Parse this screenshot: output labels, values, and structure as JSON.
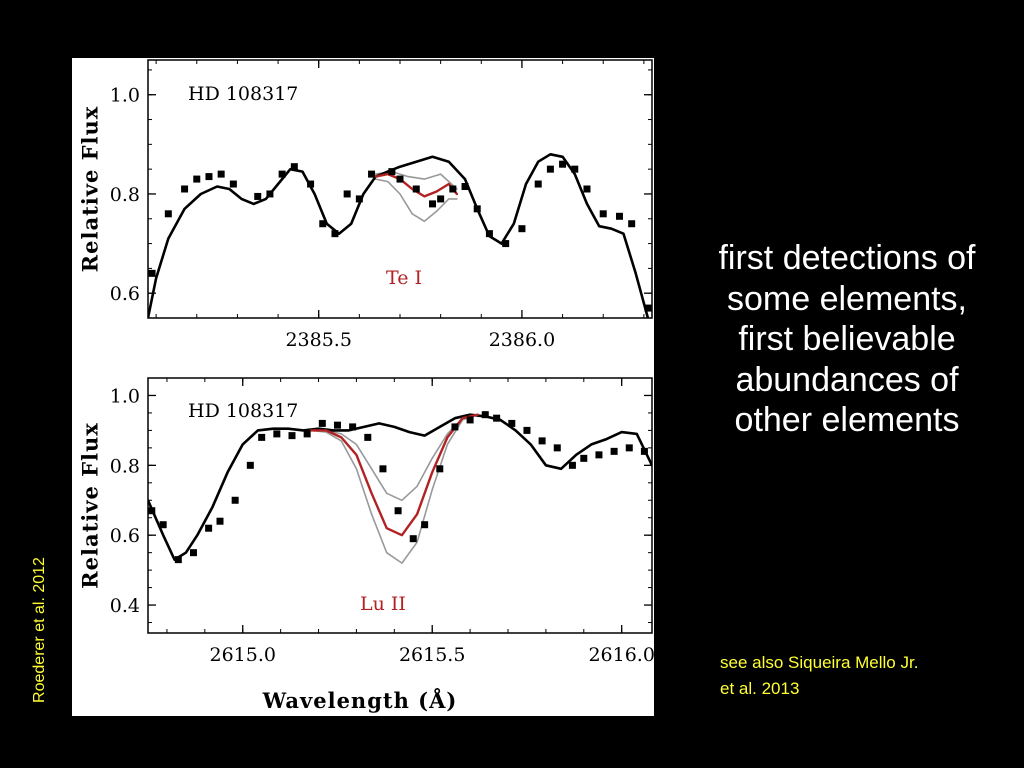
{
  "slide": {
    "main_text_lines": [
      "first detections of",
      "some elements,",
      "first believable",
      "abundances of",
      "other elements"
    ],
    "see_also_lines": [
      "see also Siqueira Mello Jr.",
      "et al. 2013"
    ],
    "citation": "Roederer et al. 2012",
    "colors": {
      "background": "#000000",
      "main_text": "#ffffff",
      "accent_text": "#ffff33"
    }
  },
  "chart_data": [
    {
      "type": "line",
      "title": "HD 108317",
      "annotation": "Te I",
      "ylabel": "Relative Flux",
      "xlabel": "",
      "xlim": [
        2385.08,
        2386.32
      ],
      "ylim": [
        0.55,
        1.07
      ],
      "xticks": [
        2385.5,
        2386.0
      ],
      "xtick_labels": [
        "2385.5",
        "2386.0"
      ],
      "yticks": [
        0.6,
        0.8,
        1.0
      ],
      "ytick_labels": [
        "0.6",
        "0.8",
        "1.0"
      ],
      "colors": {
        "observed": "#000000",
        "best_fit": "#b22222",
        "comparison": "#999999",
        "no_element": "#000000",
        "annotation": "#b22222"
      },
      "observed": {
        "x": [
          2385.09,
          2385.13,
          2385.17,
          2385.2,
          2385.23,
          2385.26,
          2385.29,
          2385.35,
          2385.38,
          2385.41,
          2385.44,
          2385.48,
          2385.51,
          2385.54,
          2385.57,
          2385.6,
          2385.63,
          2385.68,
          2385.7,
          2385.74,
          2385.78,
          2385.8,
          2385.83,
          2385.86,
          2385.89,
          2385.92,
          2385.96,
          2386.0,
          2386.04,
          2386.07,
          2386.1,
          2386.13,
          2386.16,
          2386.2,
          2386.24,
          2386.27,
          2386.31
        ],
        "y": [
          0.64,
          0.76,
          0.81,
          0.83,
          0.835,
          0.84,
          0.82,
          0.795,
          0.8,
          0.84,
          0.855,
          0.82,
          0.74,
          0.72,
          0.8,
          0.79,
          0.84,
          0.845,
          0.83,
          0.81,
          0.78,
          0.79,
          0.81,
          0.815,
          0.77,
          0.72,
          0.7,
          0.73,
          0.82,
          0.85,
          0.86,
          0.85,
          0.81,
          0.76,
          0.755,
          0.74,
          0.57
        ]
      },
      "model_no_element": {
        "x": [
          2385.08,
          2385.1,
          2385.13,
          2385.17,
          2385.21,
          2385.25,
          2385.28,
          2385.31,
          2385.34,
          2385.37,
          2385.4,
          2385.43,
          2385.46,
          2385.49,
          2385.52,
          2385.55,
          2385.58,
          2385.61,
          2385.64,
          2385.67,
          2385.7,
          2385.74,
          2385.78,
          2385.82,
          2385.86,
          2385.89,
          2385.92,
          2385.95,
          2385.98,
          2386.01,
          2386.04,
          2386.07,
          2386.1,
          2386.13,
          2386.16,
          2386.19,
          2386.22,
          2386.25,
          2386.28,
          2386.31
        ],
        "y": [
          0.55,
          0.63,
          0.71,
          0.77,
          0.8,
          0.815,
          0.81,
          0.79,
          0.78,
          0.79,
          0.82,
          0.85,
          0.845,
          0.8,
          0.74,
          0.72,
          0.74,
          0.8,
          0.835,
          0.845,
          0.855,
          0.865,
          0.875,
          0.865,
          0.83,
          0.77,
          0.715,
          0.7,
          0.74,
          0.82,
          0.865,
          0.88,
          0.875,
          0.84,
          0.78,
          0.735,
          0.73,
          0.72,
          0.64,
          0.55
        ]
      },
      "model_best_fit": {
        "x": [
          2385.64,
          2385.67,
          2385.7,
          2385.73,
          2385.76,
          2385.79,
          2385.82,
          2385.84
        ],
        "y": [
          0.835,
          0.84,
          0.83,
          0.81,
          0.795,
          0.805,
          0.82,
          0.8
        ]
      },
      "model_comparison": [
        {
          "x": [
            2385.64,
            2385.68,
            2385.72,
            2385.76,
            2385.8,
            2385.84
          ],
          "y": [
            0.84,
            0.845,
            0.835,
            0.83,
            0.84,
            0.81
          ]
        },
        {
          "x": [
            2385.64,
            2385.67,
            2385.7,
            2385.73,
            2385.76,
            2385.79,
            2385.82,
            2385.84
          ],
          "y": [
            0.83,
            0.825,
            0.8,
            0.76,
            0.745,
            0.765,
            0.79,
            0.79
          ]
        }
      ]
    },
    {
      "type": "line",
      "title": "HD 108317",
      "annotation": "Lu II",
      "ylabel": "Relative Flux",
      "xlabel": "Wavelength (Å)",
      "xlim": [
        2614.75,
        2616.08
      ],
      "ylim": [
        0.32,
        1.05
      ],
      "xticks": [
        2615.0,
        2615.5,
        2616.0
      ],
      "xtick_labels": [
        "2615.0",
        "2615.5",
        "2616.0"
      ],
      "yticks": [
        0.4,
        0.6,
        0.8,
        1.0
      ],
      "ytick_labels": [
        "0.4",
        "0.6",
        "0.8",
        "1.0"
      ],
      "colors": {
        "observed": "#000000",
        "best_fit": "#b22222",
        "comparison": "#999999",
        "no_element": "#000000",
        "annotation": "#b22222"
      },
      "observed": {
        "x": [
          2614.76,
          2614.79,
          2614.83,
          2614.87,
          2614.91,
          2614.94,
          2614.98,
          2615.02,
          2615.05,
          2615.09,
          2615.13,
          2615.17,
          2615.21,
          2615.25,
          2615.29,
          2615.33,
          2615.37,
          2615.41,
          2615.45,
          2615.48,
          2615.52,
          2615.56,
          2615.6,
          2615.64,
          2615.67,
          2615.71,
          2615.75,
          2615.79,
          2615.83,
          2615.87,
          2615.9,
          2615.94,
          2615.98,
          2616.02,
          2616.06
        ],
        "y": [
          0.67,
          0.63,
          0.53,
          0.55,
          0.62,
          0.64,
          0.7,
          0.8,
          0.88,
          0.89,
          0.885,
          0.89,
          0.92,
          0.915,
          0.91,
          0.88,
          0.79,
          0.67,
          0.59,
          0.63,
          0.79,
          0.91,
          0.93,
          0.945,
          0.935,
          0.92,
          0.9,
          0.87,
          0.85,
          0.8,
          0.82,
          0.83,
          0.84,
          0.85,
          0.84
        ]
      },
      "model_no_element": {
        "x": [
          2614.75,
          2614.79,
          2614.82,
          2614.85,
          2614.88,
          2614.92,
          2614.96,
          2615.0,
          2615.04,
          2615.08,
          2615.12,
          2615.16,
          2615.2,
          2615.24,
          2615.28,
          2615.32,
          2615.36,
          2615.4,
          2615.44,
          2615.48,
          2615.52,
          2615.56,
          2615.6,
          2615.64,
          2615.68,
          2615.72,
          2615.76,
          2615.8,
          2615.84,
          2615.88,
          2615.92,
          2615.96,
          2616.0,
          2616.04,
          2616.08
        ],
        "y": [
          0.7,
          0.6,
          0.53,
          0.55,
          0.6,
          0.68,
          0.78,
          0.86,
          0.9,
          0.905,
          0.905,
          0.9,
          0.905,
          0.9,
          0.9,
          0.91,
          0.92,
          0.91,
          0.895,
          0.885,
          0.91,
          0.935,
          0.945,
          0.94,
          0.93,
          0.9,
          0.86,
          0.8,
          0.79,
          0.83,
          0.86,
          0.875,
          0.895,
          0.89,
          0.8
        ]
      },
      "model_best_fit": {
        "x": [
          2615.18,
          2615.22,
          2615.26,
          2615.3,
          2615.34,
          2615.38,
          2615.42,
          2615.46,
          2615.5,
          2615.54,
          2615.58,
          2615.62
        ],
        "y": [
          0.9,
          0.9,
          0.88,
          0.83,
          0.72,
          0.62,
          0.6,
          0.66,
          0.78,
          0.88,
          0.935,
          0.945
        ]
      },
      "model_comparison": [
        {
          "x": [
            2615.18,
            2615.22,
            2615.26,
            2615.3,
            2615.34,
            2615.38,
            2615.42,
            2615.46,
            2615.5,
            2615.54,
            2615.58,
            2615.62
          ],
          "y": [
            0.9,
            0.9,
            0.89,
            0.86,
            0.79,
            0.72,
            0.7,
            0.74,
            0.82,
            0.89,
            0.935,
            0.945
          ]
        },
        {
          "x": [
            2615.18,
            2615.22,
            2615.26,
            2615.3,
            2615.34,
            2615.38,
            2615.42,
            2615.46,
            2615.5,
            2615.54,
            2615.58,
            2615.62
          ],
          "y": [
            0.9,
            0.895,
            0.87,
            0.79,
            0.66,
            0.55,
            0.52,
            0.58,
            0.73,
            0.86,
            0.93,
            0.945
          ]
        }
      ]
    }
  ]
}
